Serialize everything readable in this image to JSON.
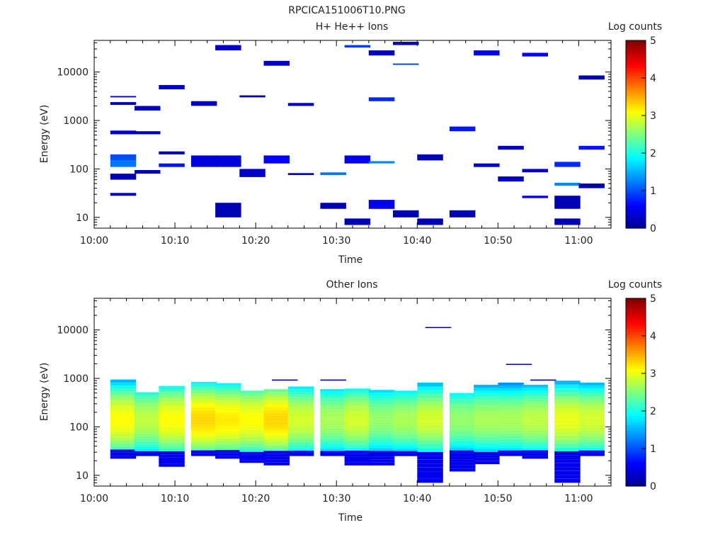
{
  "page_title": "RPCICA151006T10.PNG",
  "colorbar": {
    "label": "Log counts",
    "ticks": [
      "0",
      "1",
      "2",
      "3",
      "4",
      "5"
    ],
    "range": [
      0,
      5
    ],
    "colormap": [
      "#00008f",
      "#0000ff",
      "#00ffff",
      "#ffff00",
      "#ff0000",
      "#800000"
    ]
  },
  "chart_data": [
    {
      "type": "heatmap",
      "title": "H+ He++ Ions",
      "xlabel": "Time",
      "ylabel": "Energy (eV)",
      "y_scale": "log",
      "ylim": [
        6,
        45000
      ],
      "xlim": [
        0,
        64
      ],
      "xtick_labels": [
        "10:00",
        "10:10",
        "10:20",
        "10:30",
        "10:40",
        "10:50",
        "11:00"
      ],
      "ytick_labels": [
        "10",
        "100",
        "1000",
        "10000"
      ],
      "time_bins": [
        {
          "start": "10:02",
          "cells": [
            {
              "e1": 3000,
              "e2": 3200,
              "v": 0.3
            },
            {
              "e1": 2100,
              "e2": 2400,
              "v": 0.2
            },
            {
              "e1": 520,
              "e2": 620,
              "v": 0.3
            },
            {
              "e1": 150,
              "e2": 200,
              "v": 1.0
            },
            {
              "e1": 110,
              "e2": 150,
              "v": 1.2
            },
            {
              "e1": 60,
              "e2": 80,
              "v": 0.2
            },
            {
              "e1": 28,
              "e2": 32,
              "v": 0.2
            }
          ]
        },
        {
          "start": "10:05",
          "cells": [
            {
              "e1": 1600,
              "e2": 2000,
              "v": 0.3
            },
            {
              "e1": 520,
              "e2": 600,
              "v": 0.2
            },
            {
              "e1": 80,
              "e2": 95,
              "v": 0.2
            }
          ]
        },
        {
          "start": "10:08",
          "cells": [
            {
              "e1": 4400,
              "e2": 5400,
              "v": 0.3
            },
            {
              "e1": 200,
              "e2": 230,
              "v": 0.2
            },
            {
              "e1": 110,
              "e2": 130,
              "v": 0.7
            }
          ]
        },
        {
          "start": "10:12",
          "cells": [
            {
              "e1": 2000,
              "e2": 2500,
              "v": 0.3
            },
            {
              "e1": 110,
              "e2": 190,
              "v": 0.4
            }
          ]
        },
        {
          "start": "10:15",
          "cells": [
            {
              "e1": 28000,
              "e2": 36000,
              "v": 0.3
            },
            {
              "e1": 110,
              "e2": 190,
              "v": 0.4
            },
            {
              "e1": 10,
              "e2": 20,
              "v": 0.2
            }
          ]
        },
        {
          "start": "10:18",
          "cells": [
            {
              "e1": 3000,
              "e2": 3300,
              "v": 0.2
            },
            {
              "e1": 68,
              "e2": 100,
              "v": 0.3
            }
          ]
        },
        {
          "start": "10:21",
          "cells": [
            {
              "e1": 13500,
              "e2": 17000,
              "v": 0.3
            },
            {
              "e1": 130,
              "e2": 190,
              "v": 0.6
            }
          ]
        },
        {
          "start": "10:24",
          "cells": [
            {
              "e1": 2000,
              "e2": 2300,
              "v": 0.3
            },
            {
              "e1": 75,
              "e2": 82,
              "v": 0.3
            }
          ]
        },
        {
          "start": "10:28",
          "cells": [
            {
              "e1": 75,
              "e2": 85,
              "v": 1.2
            },
            {
              "e1": 15,
              "e2": 20,
              "v": 0.2
            }
          ]
        },
        {
          "start": "10:31",
          "cells": [
            {
              "e1": 32000,
              "e2": 36000,
              "v": 0.9
            },
            {
              "e1": 130,
              "e2": 190,
              "v": 0.5
            },
            {
              "e1": 7,
              "e2": 9.5,
              "v": 0.2
            }
          ]
        },
        {
          "start": "10:34",
          "cells": [
            {
              "e1": 22000,
              "e2": 28000,
              "v": 0.3
            },
            {
              "e1": 2500,
              "e2": 3000,
              "v": 0.8
            },
            {
              "e1": 130,
              "e2": 145,
              "v": 1.3
            },
            {
              "e1": 15,
              "e2": 23,
              "v": 0.5
            }
          ]
        },
        {
          "start": "10:37",
          "cells": [
            {
              "e1": 36000,
              "e2": 42000,
              "v": 0.3
            },
            {
              "e1": 14000,
              "e2": 15000,
              "v": 1.0
            },
            {
              "e1": 10,
              "e2": 14,
              "v": 0.2
            }
          ]
        },
        {
          "start": "10:40",
          "cells": [
            {
              "e1": 150,
              "e2": 200,
              "v": 0.2
            },
            {
              "e1": 7,
              "e2": 9.5,
              "v": 0.2
            }
          ]
        },
        {
          "start": "10:44",
          "cells": [
            {
              "e1": 600,
              "e2": 750,
              "v": 0.7
            },
            {
              "e1": 10,
              "e2": 14,
              "v": 0.2
            }
          ]
        },
        {
          "start": "10:47",
          "cells": [
            {
              "e1": 22000,
              "e2": 28000,
              "v": 0.6
            },
            {
              "e1": 110,
              "e2": 130,
              "v": 0.4
            }
          ]
        },
        {
          "start": "10:50",
          "cells": [
            {
              "e1": 250,
              "e2": 300,
              "v": 0.3
            },
            {
              "e1": 55,
              "e2": 70,
              "v": 0.3
            }
          ]
        },
        {
          "start": "10:53",
          "cells": [
            {
              "e1": 21000,
              "e2": 25000,
              "v": 0.6
            },
            {
              "e1": 85,
              "e2": 100,
              "v": 0.3
            },
            {
              "e1": 25,
              "e2": 28,
              "v": 0.6
            }
          ]
        },
        {
          "start": "10:57",
          "cells": [
            {
              "e1": 110,
              "e2": 140,
              "v": 0.8
            },
            {
              "e1": 45,
              "e2": 52,
              "v": 1.3
            },
            {
              "e1": 15,
              "e2": 28,
              "v": 0.2
            },
            {
              "e1": 7,
              "e2": 9.5,
              "v": 0.2
            }
          ]
        },
        {
          "start": "11:00",
          "cells": [
            {
              "e1": 7000,
              "e2": 8500,
              "v": 0.2
            },
            {
              "e1": 250,
              "e2": 300,
              "v": 0.7
            },
            {
              "e1": 40,
              "e2": 50,
              "v": 0.2
            }
          ]
        }
      ]
    },
    {
      "type": "heatmap",
      "title": "Other Ions",
      "xlabel": "Time",
      "ylabel": "Energy (eV)",
      "y_scale": "log",
      "ylim": [
        6,
        45000
      ],
      "xlim": [
        0,
        64
      ],
      "xtick_labels": [
        "10:00",
        "10:10",
        "10:20",
        "10:30",
        "10:40",
        "10:50",
        "11:00"
      ],
      "ytick_labels": [
        "10",
        "100",
        "1000",
        "10000"
      ],
      "time_bins": [
        {
          "start": "10:02",
          "emin": 22,
          "emax": 950,
          "peak": 3.1
        },
        {
          "start": "10:05",
          "emin": 25,
          "emax": 520,
          "peak": 2.8
        },
        {
          "start": "10:08",
          "emin": 15,
          "emax": 700,
          "peak": 3.1
        },
        {
          "start": "10:12",
          "emin": 25,
          "emax": 850,
          "peak": 3.3
        },
        {
          "start": "10:15",
          "emin": 22,
          "emax": 800,
          "peak": 3.2
        },
        {
          "start": "10:18",
          "emin": 18,
          "emax": 560,
          "peak": 3.1
        },
        {
          "start": "10:21",
          "emin": 16,
          "emax": 600,
          "peak": 3.3
        },
        {
          "start": "10:24",
          "emin": 25,
          "emax": 680,
          "peak": 2.9
        },
        {
          "start": "10:28",
          "emin": 25,
          "emax": 600,
          "peak": 2.7
        },
        {
          "start": "10:31",
          "emin": 16,
          "emax": 620,
          "peak": 2.9
        },
        {
          "start": "10:34",
          "emin": 16,
          "emax": 580,
          "peak": 2.6
        },
        {
          "start": "10:37",
          "emin": 25,
          "emax": 560,
          "peak": 2.7
        },
        {
          "start": "10:40",
          "emin": 7,
          "emax": 820,
          "peak": 2.9
        },
        {
          "start": "10:44",
          "emin": 12,
          "emax": 500,
          "peak": 2.6
        },
        {
          "start": "10:47",
          "emin": 17,
          "emax": 740,
          "peak": 2.7
        },
        {
          "start": "10:50",
          "emin": 25,
          "emax": 820,
          "peak": 2.7
        },
        {
          "start": "10:53",
          "emin": 22,
          "emax": 740,
          "peak": 2.8
        },
        {
          "start": "10:57",
          "emin": 7,
          "emax": 900,
          "peak": 3.0
        },
        {
          "start": "11:00",
          "emin": 25,
          "emax": 820,
          "peak": 2.9
        }
      ],
      "isolated_cells": [
        {
          "start": "10:41",
          "e1": 11000,
          "e2": 11500,
          "v": 0.2
        },
        {
          "start": "10:51",
          "e1": 1900,
          "e2": 2000,
          "v": 0.2
        },
        {
          "start": "10:54",
          "e1": 900,
          "e2": 950,
          "v": 0.2
        },
        {
          "start": "10:22",
          "e1": 900,
          "e2": 950,
          "v": 0.2
        },
        {
          "start": "10:28",
          "e1": 900,
          "e2": 950,
          "v": 0.2
        }
      ]
    }
  ]
}
